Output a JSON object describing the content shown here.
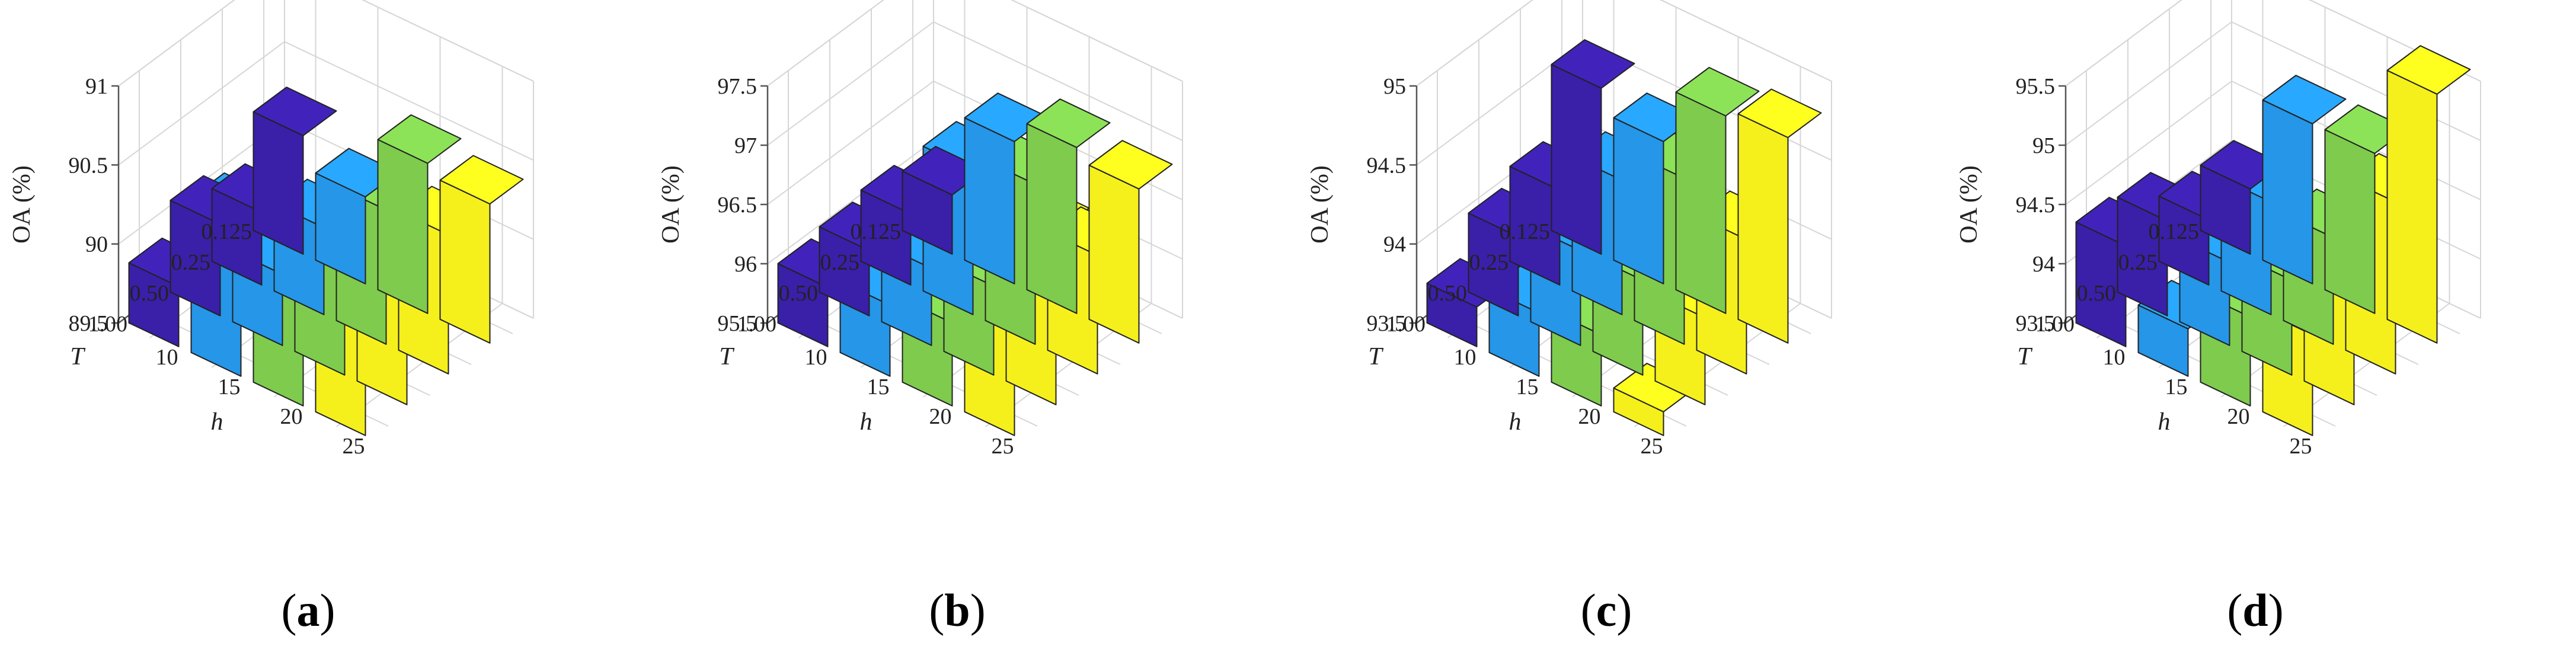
{
  "chart_data": [
    {
      "type": "bar3d",
      "panel_label": "a",
      "zlabel": "OA (%)",
      "xlabel": "h",
      "ylabel": "T",
      "h_ticks": [
        "10",
        "15",
        "20",
        "25"
      ],
      "T_ticks": [
        "0.125",
        "0.25",
        "0.50",
        "1.00"
      ],
      "z_ticks": [
        "89.5",
        "90",
        "90.5",
        "91"
      ],
      "zlim": [
        89.5,
        91
      ],
      "colors": [
        "#3a1fa8",
        "#2596e8",
        "#7ecb4e",
        "#f5f01c"
      ],
      "series": [
        {
          "name": "h=10",
          "values": [
            90.25,
            89.96,
            90.08,
            89.88
          ]
        },
        {
          "name": "h=15",
          "values": [
            90.05,
            90.05,
            89.95,
            90.48
          ]
        },
        {
          "name": "h=20",
          "values": [
            90.45,
            90.35,
            90.45,
            90.45
          ]
        },
        {
          "name": "h=25",
          "values": [
            90.38,
            90.38,
            90.3,
            90.35
          ]
        }
      ]
    },
    {
      "type": "bar3d",
      "panel_label": "b",
      "zlabel": "OA (%)",
      "xlabel": "h",
      "ylabel": "T",
      "h_ticks": [
        "10",
        "15",
        "20",
        "25"
      ],
      "T_ticks": [
        "0.125",
        "0.25",
        "0.50",
        "1.00"
      ],
      "z_ticks": [
        "95.5",
        "96",
        "96.5",
        "97",
        "97.5"
      ],
      "zlim": [
        95.5,
        97.5
      ],
      "colors": [
        "#3a1fa8",
        "#2596e8",
        "#7ecb4e",
        "#f5f01c"
      ],
      "series": [
        {
          "name": "h=10",
          "values": [
            96.0,
            96.1,
            96.05,
            96.0
          ]
        },
        {
          "name": "h=15",
          "values": [
            96.7,
            96.72,
            96.15,
            96.1
          ]
        },
        {
          "name": "h=20",
          "values": [
            96.9,
            96.85,
            96.25,
            96.2
          ]
        },
        {
          "name": "h=25",
          "values": [
            96.8,
            96.5,
            96.95,
            96.6
          ]
        }
      ]
    },
    {
      "type": "bar3d",
      "panel_label": "c",
      "zlabel": "OA (%)",
      "xlabel": "h",
      "ylabel": "T",
      "h_ticks": [
        "10",
        "15",
        "20",
        "25"
      ],
      "T_ticks": [
        "0.125",
        "0.25",
        "0.50",
        "1.00"
      ],
      "z_ticks": [
        "93.5",
        "94",
        "94.5",
        "95"
      ],
      "zlim": [
        93.5,
        95
      ],
      "colors": [
        "#3a1fa8",
        "#2596e8",
        "#7ecb4e",
        "#f5f01c"
      ],
      "series": [
        {
          "name": "h=10",
          "values": [
            94.55,
            94.1,
            94.0,
            93.75
          ]
        },
        {
          "name": "h=15",
          "values": [
            94.4,
            94.35,
            94.1,
            93.9
          ]
        },
        {
          "name": "h=20",
          "values": [
            94.75,
            94.55,
            94.1,
            93.95
          ]
        },
        {
          "name": "h=25",
          "values": [
            94.8,
            94.35,
            94.05,
            93.65
          ]
        }
      ]
    },
    {
      "type": "bar3d",
      "panel_label": "d",
      "zlabel": "OA (%)",
      "xlabel": "h",
      "ylabel": "T",
      "h_ticks": [
        "10",
        "15",
        "20",
        "25"
      ],
      "T_ticks": [
        "0.125",
        "0.25",
        "0.50",
        "1.00"
      ],
      "z_ticks": [
        "93.5",
        "94",
        "94.5",
        "95",
        "95.5"
      ],
      "zlim": [
        93.5,
        95.5
      ],
      "colors": [
        "#3a1fa8",
        "#2596e8",
        "#7ecb4e",
        "#f5f01c"
      ],
      "series": [
        {
          "name": "h=10",
          "values": [
            94.05,
            94.05,
            94.3,
            94.35
          ]
        },
        {
          "name": "h=15",
          "values": [
            94.85,
            94.45,
            94.2,
            93.9
          ]
        },
        {
          "name": "h=20",
          "values": [
            94.85,
            94.4,
            94.3,
            94.25
          ]
        },
        {
          "name": "h=25",
          "values": [
            95.6,
            94.95,
            94.55,
            94.35
          ]
        }
      ]
    }
  ]
}
